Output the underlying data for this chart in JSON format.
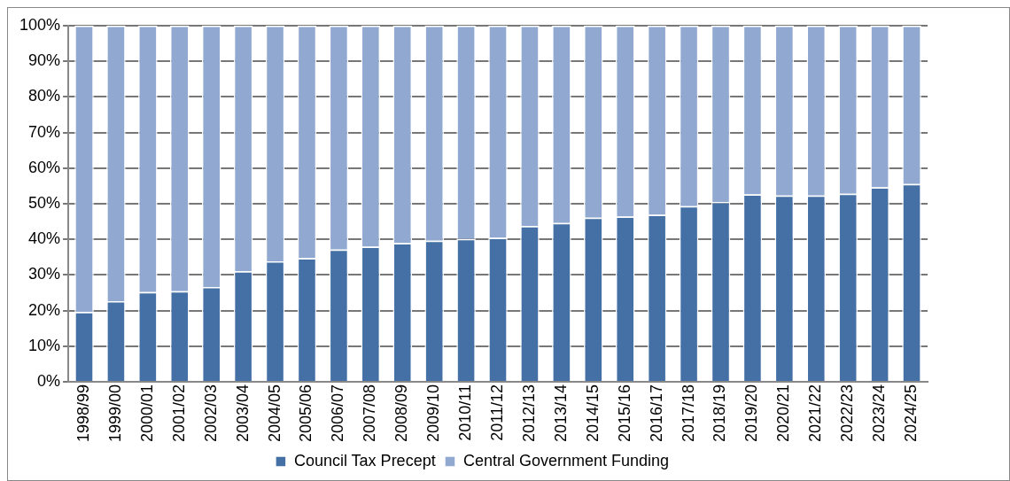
{
  "chart_data": {
    "type": "bar",
    "stacked": true,
    "categories": [
      "1998/99",
      "1999/00",
      "2000/01",
      "2001/02",
      "2002/03",
      "2003/04",
      "2004/05",
      "2005/06",
      "2006/07",
      "2007/08",
      "2008/09",
      "2009/10",
      "2010/11",
      "2011/12",
      "2012/13",
      "2013/14",
      "2014/15",
      "2015/16",
      "2016/17",
      "2017/18",
      "2018/19",
      "2019/20",
      "2020/21",
      "2021/22",
      "2022/23",
      "2023/24",
      "2024/25"
    ],
    "series": [
      {
        "name": "Council Tax Precept",
        "color": "#4470a5",
        "values": [
          19.6,
          22.6,
          25.2,
          25.4,
          26.6,
          31.0,
          33.8,
          34.7,
          37.1,
          37.9,
          38.9,
          39.6,
          40.1,
          40.4,
          43.7,
          44.6,
          46.1,
          46.4,
          46.9,
          49.3,
          50.5,
          52.6,
          52.3,
          52.3,
          52.8,
          54.6,
          55.5
        ]
      },
      {
        "name": "Central Government Funding",
        "color": "#91a9d0",
        "values": [
          80.4,
          77.4,
          74.8,
          74.6,
          73.4,
          69.0,
          66.2,
          65.3,
          62.9,
          62.1,
          61.1,
          60.4,
          59.9,
          59.6,
          56.3,
          55.4,
          53.9,
          53.6,
          53.1,
          50.7,
          49.5,
          47.4,
          47.7,
          47.7,
          47.2,
          45.4,
          44.5
        ]
      }
    ],
    "ylim": [
      0,
      100
    ],
    "yticks": [
      {
        "value": 0,
        "label": "0%"
      },
      {
        "value": 10,
        "label": "10%"
      },
      {
        "value": 20,
        "label": "20%"
      },
      {
        "value": 30,
        "label": "30%"
      },
      {
        "value": 40,
        "label": "40%"
      },
      {
        "value": 50,
        "label": "50%"
      },
      {
        "value": 60,
        "label": "60%"
      },
      {
        "value": 70,
        "label": "70%"
      },
      {
        "value": 80,
        "label": "80%"
      },
      {
        "value": 90,
        "label": "90%"
      },
      {
        "value": 100,
        "label": "100%"
      }
    ],
    "grid": "y",
    "legend": "bottom"
  }
}
